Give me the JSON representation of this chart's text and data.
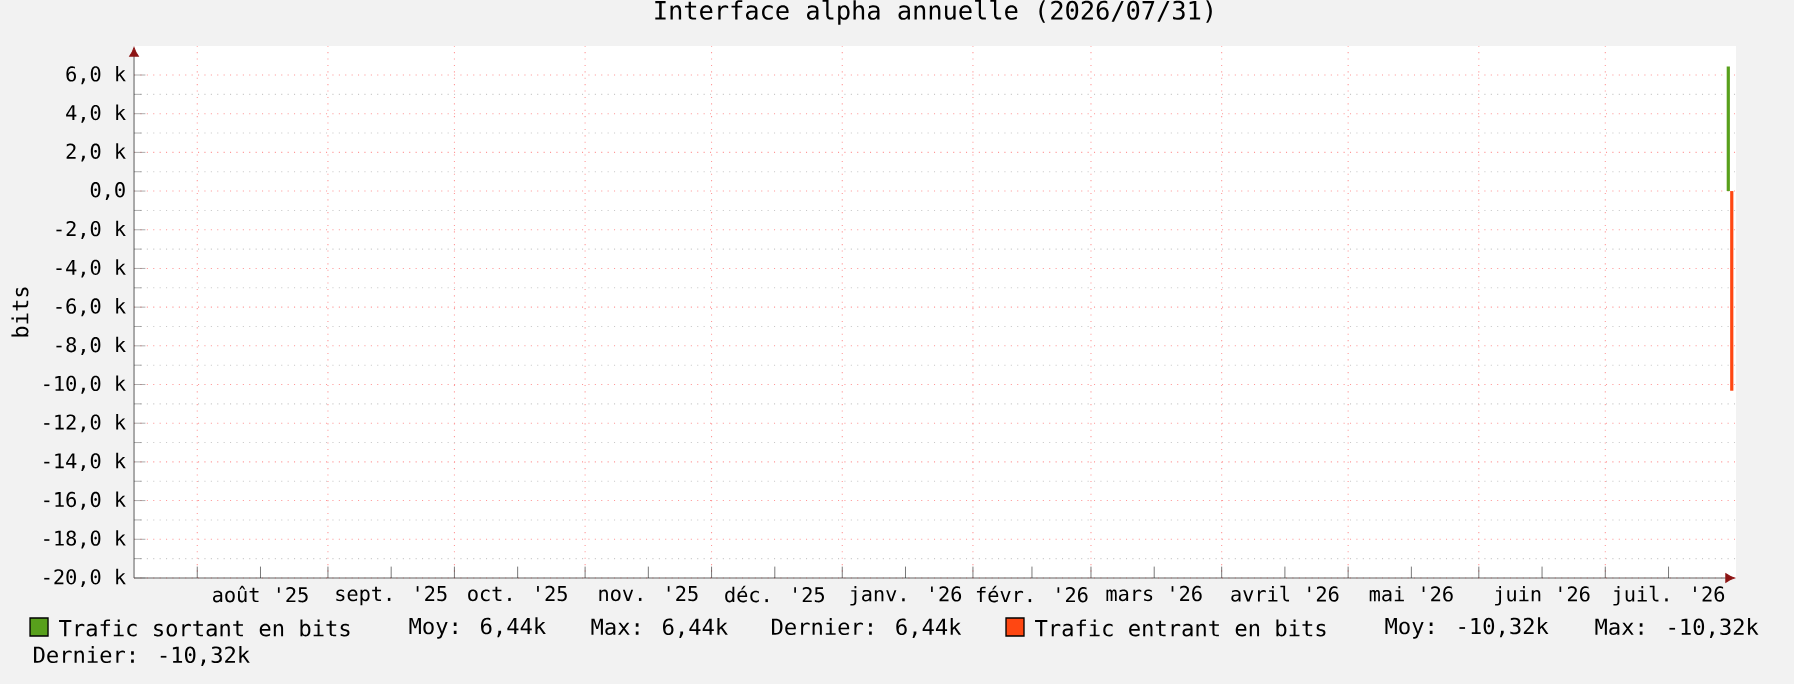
{
  "chart_data": {
    "type": "bar",
    "title": "Interface alpha annuelle (2026/07/31)",
    "ylabel": "bits",
    "xlim": [
      "2025-07-17",
      "2026-08-01"
    ],
    "xticks": [
      {
        "value": "2025-08-01",
        "label": null
      },
      {
        "value": "2025-08-16",
        "label": "août '25"
      },
      {
        "value": "2025-09-01",
        "label": null
      },
      {
        "value": "2025-09-16",
        "label": "sept. '25"
      },
      {
        "value": "2025-10-01",
        "label": null
      },
      {
        "value": "2025-10-16",
        "label": "oct. '25"
      },
      {
        "value": "2025-11-01",
        "label": null
      },
      {
        "value": "2025-11-16",
        "label": "nov. '25"
      },
      {
        "value": "2025-12-01",
        "label": null
      },
      {
        "value": "2025-12-16",
        "label": "déc. '25"
      },
      {
        "value": "2026-01-01",
        "label": null
      },
      {
        "value": "2026-01-16",
        "label": "janv. '26"
      },
      {
        "value": "2026-02-01",
        "label": null
      },
      {
        "value": "2026-02-15",
        "label": "févr. '26"
      },
      {
        "value": "2026-03-01",
        "label": null
      },
      {
        "value": "2026-03-16",
        "label": "mars '26"
      },
      {
        "value": "2026-04-01",
        "label": null
      },
      {
        "value": "2026-04-16",
        "label": "avril '26"
      },
      {
        "value": "2026-05-01",
        "label": null
      },
      {
        "value": "2026-05-16",
        "label": "mai '26"
      },
      {
        "value": "2026-06-01",
        "label": null
      },
      {
        "value": "2026-06-16",
        "label": "juin '26"
      },
      {
        "value": "2026-07-01",
        "label": null
      },
      {
        "value": "2026-07-16",
        "label": "juil. '26"
      }
    ],
    "ylim": [
      -20000,
      7500
    ],
    "yticks": [
      {
        "value": -20000,
        "label": "-20,0 k"
      },
      {
        "value": -18000,
        "label": "-18,0 k"
      },
      {
        "value": -16000,
        "label": "-16,0 k"
      },
      {
        "value": -14000,
        "label": "-14,0 k"
      },
      {
        "value": -12000,
        "label": "-12,0 k"
      },
      {
        "value": -10000,
        "label": "-10,0 k"
      },
      {
        "value": -8000,
        "label": "-8,0 k"
      },
      {
        "value": -6000,
        "label": "-6,0 k"
      },
      {
        "value": -4000,
        "label": "-4,0 k"
      },
      {
        "value": -2000,
        "label": "-2,0 k"
      },
      {
        "value": 0,
        "label": "0,0"
      },
      {
        "value": 2000,
        "label": "2,0 k"
      },
      {
        "value": 4000,
        "label": "4,0 k"
      },
      {
        "value": 6000,
        "label": "6,0 k"
      }
    ],
    "series": [
      {
        "name": "Trafic sortant en bits",
        "color": "#58a01c",
        "x": [
          "2026-07-31"
        ],
        "values": [
          6440
        ]
      },
      {
        "name": "Trafic entrant en bits",
        "color": "#ff4712",
        "x": [
          "2026-07-31"
        ],
        "values": [
          -10320
        ]
      }
    ],
    "annotations": [
      "Moy: 6,44k",
      "Max: 6,44k",
      "Dernier: 6,44k",
      "Moy: -10,32k",
      "Max: -10,32k",
      "Dernier: -10,32k"
    ],
    "grid": true,
    "legend": "bottom"
  }
}
